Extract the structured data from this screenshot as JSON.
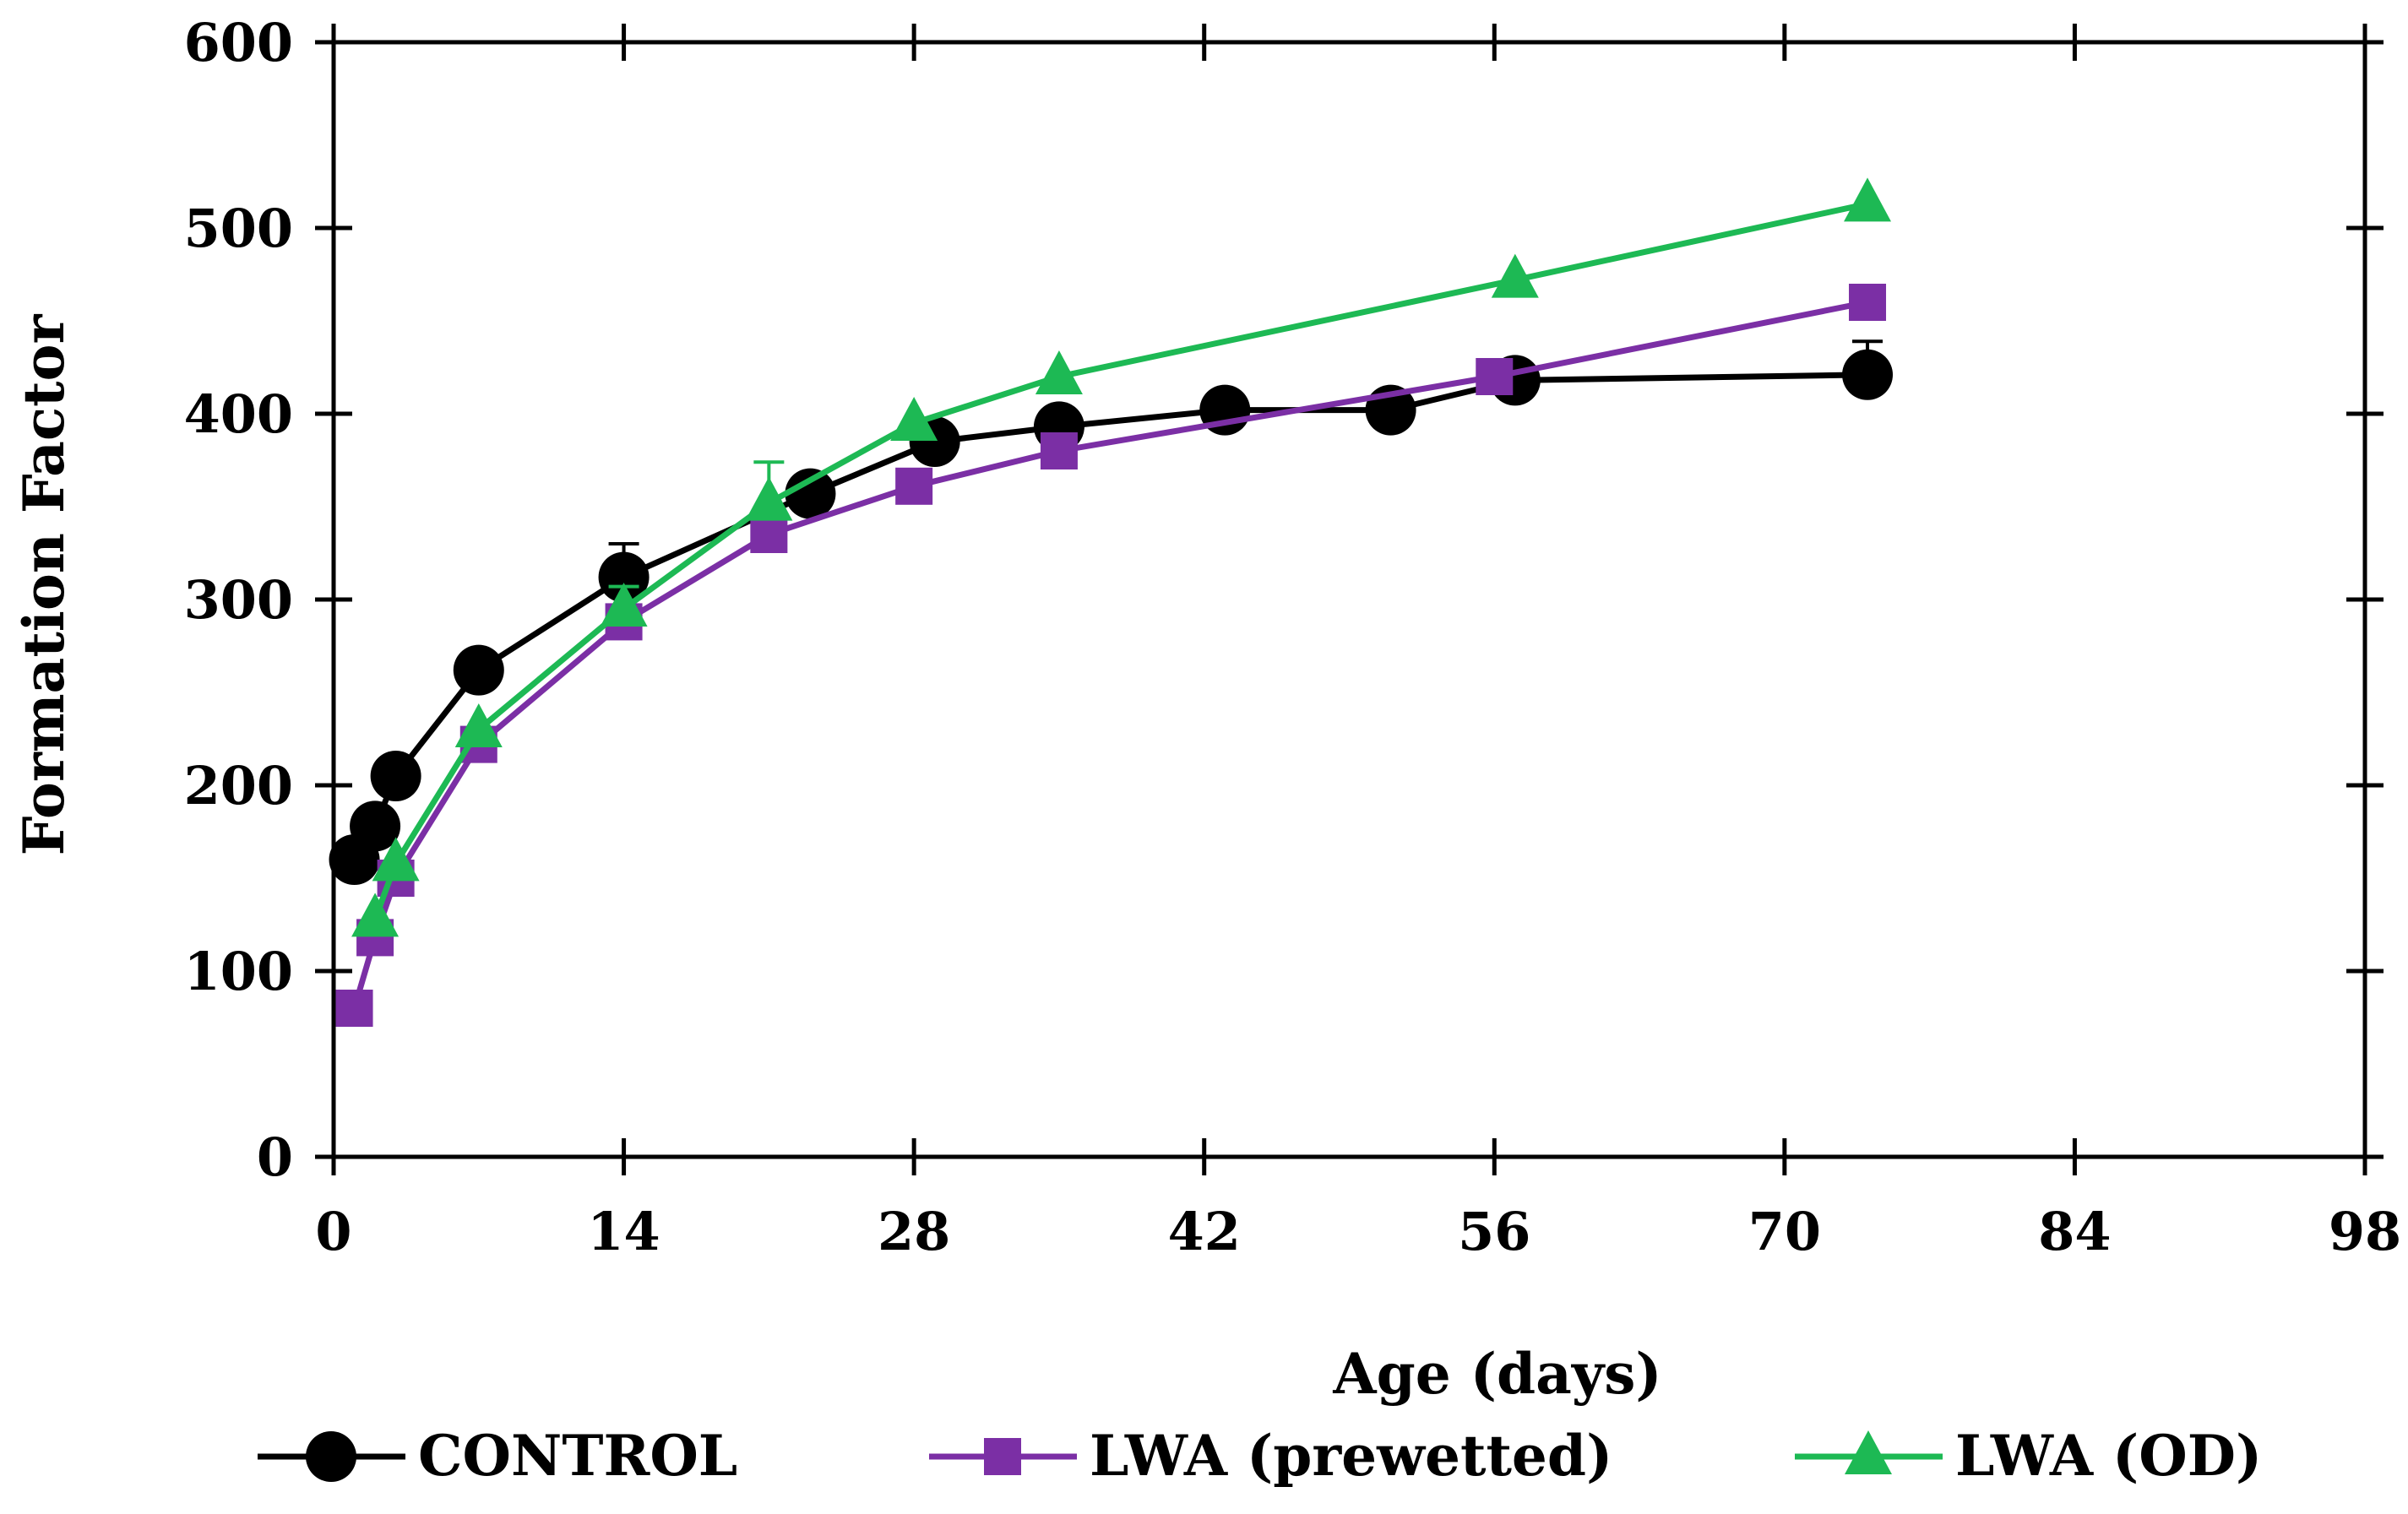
{
  "chart_data": {
    "type": "line",
    "xlabel": "Age (days)",
    "ylabel": "Formation Factor",
    "xlim": [
      0,
      98
    ],
    "ylim": [
      0,
      600
    ],
    "xticks": [
      "0",
      "14",
      "28",
      "42",
      "56",
      "70",
      "84",
      "98"
    ],
    "yticks": [
      "0",
      "100",
      "200",
      "300",
      "400",
      "500",
      "600"
    ],
    "grid": false,
    "legend_position": "bottom",
    "series": [
      {
        "name": "CONTROL",
        "color": "#000000",
        "marker": "circle",
        "x": [
          1,
          2,
          3,
          7,
          14,
          23,
          29,
          35,
          43,
          51,
          57,
          74
        ],
        "y": [
          160,
          178,
          205,
          262,
          312,
          357,
          385,
          393,
          402,
          402,
          418,
          421
        ],
        "yerr": [
          0,
          0,
          0,
          0,
          18,
          0,
          0,
          0,
          0,
          0,
          0,
          18
        ]
      },
      {
        "name": "LWA (prewetted)",
        "color": "#7B2FA5",
        "marker": "square",
        "x": [
          1,
          2,
          3,
          7,
          14,
          21,
          28,
          35,
          56,
          74
        ],
        "y": [
          80,
          118,
          150,
          222,
          288,
          335,
          361,
          380,
          420,
          460
        ],
        "yerr": [
          0,
          0,
          0,
          0,
          0,
          0,
          0,
          0,
          0,
          0
        ]
      },
      {
        "name": "LWA (OD)",
        "color": "#1DB954",
        "marker": "triangle",
        "x": [
          2,
          3,
          7,
          14,
          21,
          28,
          35,
          57,
          74
        ],
        "y": [
          128,
          158,
          230,
          295,
          352,
          395,
          420,
          472,
          513
        ],
        "yerr": [
          0,
          0,
          0,
          12,
          22,
          0,
          0,
          0,
          0
        ]
      }
    ]
  }
}
